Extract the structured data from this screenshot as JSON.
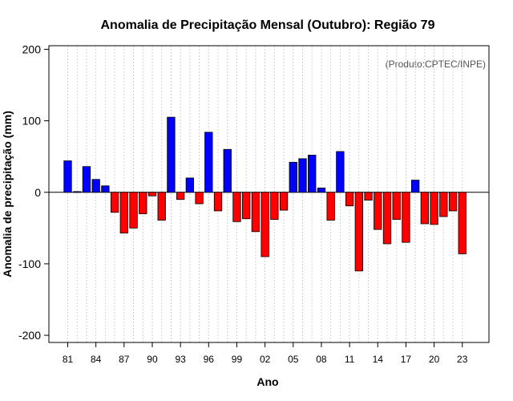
{
  "chart_data": {
    "type": "bar",
    "title": "Anomalia de Precipitação Mensal (Outubro): Região 79",
    "xlabel": "Ano",
    "ylabel": "Anomalia de precipitação (mm)",
    "credit": "(Produto:CPTEC/INPE)",
    "ylim": [
      -210,
      205
    ],
    "yticks": [
      -200,
      -100,
      0,
      100,
      200
    ],
    "xtick_years": [
      1981,
      1984,
      1987,
      1990,
      1993,
      1996,
      1999,
      2002,
      2005,
      2008,
      2011,
      2014,
      2017,
      2020,
      2023
    ],
    "xtick_labels": [
      "81",
      "84",
      "87",
      "90",
      "93",
      "96",
      "99",
      "02",
      "05",
      "08",
      "11",
      "14",
      "17",
      "20",
      "23"
    ],
    "years": [
      1981,
      1982,
      1983,
      1984,
      1985,
      1986,
      1987,
      1988,
      1989,
      1990,
      1991,
      1992,
      1993,
      1994,
      1995,
      1996,
      1997,
      1998,
      1999,
      2000,
      2001,
      2002,
      2003,
      2004,
      2005,
      2006,
      2007,
      2008,
      2009,
      2010,
      2011,
      2012,
      2013,
      2014,
      2015,
      2016,
      2017,
      2018,
      2019,
      2020,
      2021,
      2022,
      2023
    ],
    "values": [
      44,
      1,
      36,
      18,
      9,
      -28,
      -57,
      -50,
      -30,
      -5,
      -39,
      105,
      -10,
      20,
      -16,
      84,
      -26,
      60,
      -41,
      -37,
      -55,
      -90,
      -38,
      -25,
      42,
      47,
      52,
      6,
      -39,
      57,
      -19,
      -110,
      -11,
      -52,
      -72,
      -38,
      -70,
      17,
      -44,
      -45,
      -34,
      -26,
      -86
    ],
    "colors": {
      "positive": "#0000ff",
      "negative": "#ff0000",
      "grid": "#c8c8c8"
    }
  }
}
